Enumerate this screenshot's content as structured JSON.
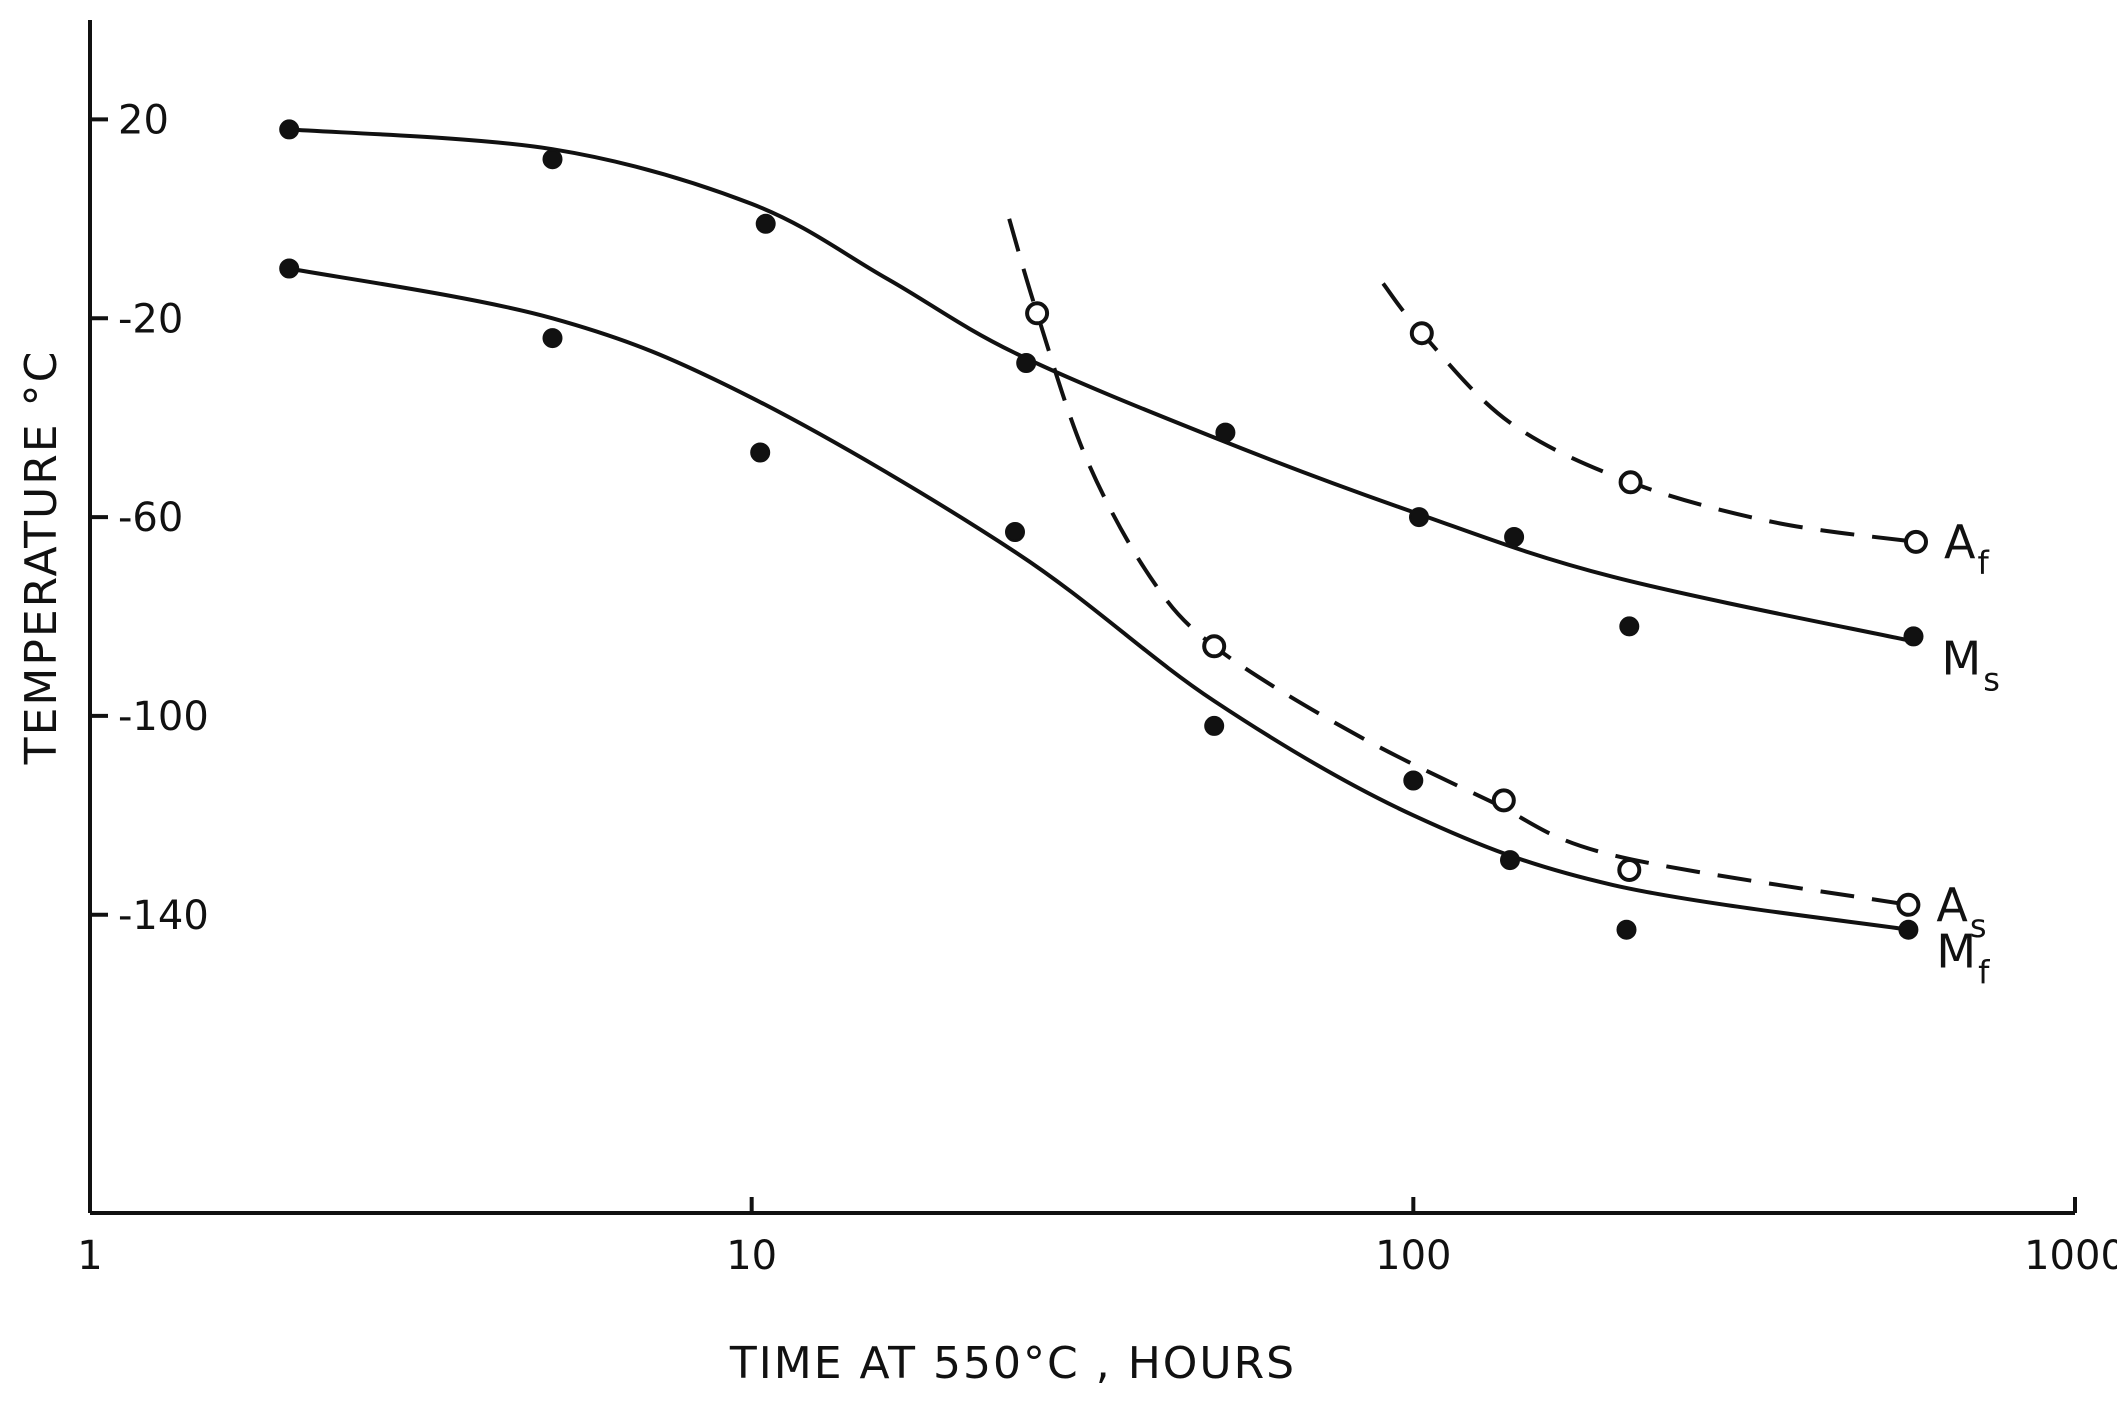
{
  "chart_data": {
    "type": "scatter",
    "title": "",
    "xlabel": "TIME AT 550°C , HOURS",
    "ylabel": "TEMPERATURE °C",
    "xscale": "log",
    "xlim": [
      1,
      1000
    ],
    "ylim": [
      -200,
      40
    ],
    "x_ticks": [
      1,
      10,
      100,
      1000
    ],
    "x_tick_labels": [
      "1",
      "10",
      "100",
      "1000"
    ],
    "y_ticks": [
      20,
      -20,
      -60,
      -100,
      -140
    ],
    "y_tick_labels": [
      "20",
      "-20",
      "-60",
      "-100",
      "-140"
    ],
    "grid": false,
    "legend": "none",
    "series": [
      {
        "name": "Ms",
        "label": "M",
        "sub": "s",
        "marker": "filled",
        "line": "solid",
        "points": [
          [
            2,
            18
          ],
          [
            5,
            12
          ],
          [
            10.5,
            -1
          ],
          [
            26,
            -29
          ],
          [
            52,
            -43
          ],
          [
            102,
            -60
          ],
          [
            142,
            -64
          ],
          [
            212,
            -82
          ],
          [
            570,
            -84
          ]
        ],
        "fit": [
          [
            2,
            18
          ],
          [
            5,
            14
          ],
          [
            10,
            3
          ],
          [
            16,
            -12
          ],
          [
            25,
            -27
          ],
          [
            50,
            -44
          ],
          [
            100,
            -59
          ],
          [
            200,
            -72
          ],
          [
            570,
            -85
          ]
        ]
      },
      {
        "name": "Mf",
        "label": "M",
        "sub": "f",
        "marker": "filled",
        "line": "solid",
        "points": [
          [
            2,
            -10
          ],
          [
            5,
            -24
          ],
          [
            10.3,
            -47
          ],
          [
            25,
            -63
          ],
          [
            50,
            -102
          ],
          [
            100,
            -113
          ],
          [
            140,
            -129
          ],
          [
            210,
            -143
          ],
          [
            560,
            -143
          ]
        ],
        "fit": [
          [
            2,
            -10
          ],
          [
            5,
            -20
          ],
          [
            10,
            -36
          ],
          [
            25,
            -67
          ],
          [
            50,
            -97
          ],
          [
            100,
            -120
          ],
          [
            200,
            -134
          ],
          [
            560,
            -143
          ]
        ]
      },
      {
        "name": "As",
        "label": "A",
        "sub": "s",
        "marker": "open",
        "line": "dashed",
        "points": [
          [
            27,
            -19
          ],
          [
            50,
            -86
          ],
          [
            137,
            -117
          ],
          [
            212,
            -131
          ],
          [
            560,
            -138
          ]
        ],
        "fit": [
          [
            24.5,
            0
          ],
          [
            27,
            -19
          ],
          [
            32,
            -48
          ],
          [
            40,
            -72
          ],
          [
            50,
            -86
          ],
          [
            80,
            -103
          ],
          [
            130,
            -117
          ],
          [
            200,
            -128
          ],
          [
            560,
            -138
          ]
        ]
      },
      {
        "name": "Af",
        "label": "A",
        "sub": "f",
        "marker": "open",
        "line": "dashed",
        "points": [
          [
            103,
            -23
          ],
          [
            213,
            -53
          ],
          [
            575,
            -65
          ]
        ],
        "fit": [
          [
            90,
            -13
          ],
          [
            103,
            -23
          ],
          [
            140,
            -41
          ],
          [
            213,
            -53
          ],
          [
            350,
            -61
          ],
          [
            575,
            -65
          ]
        ]
      }
    ]
  }
}
